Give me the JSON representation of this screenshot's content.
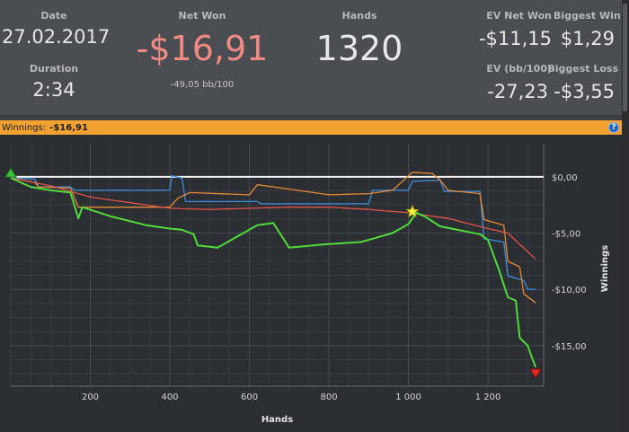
{
  "stats": {
    "date": {
      "label": "Date",
      "value": "27.02.2017"
    },
    "duration": {
      "label": "Duration",
      "value": "2:34"
    },
    "net_won": {
      "label": "Net Won",
      "value": "-$16,91",
      "sub": "-49,05 bb/100"
    },
    "hands": {
      "label": "Hands",
      "value": "1320"
    },
    "ev_net_won": {
      "label": "EV Net Won",
      "value": "-$11,15"
    },
    "ev_bb": {
      "label": "EV (bb/100)",
      "value": "-27,23"
    },
    "biggest_win": {
      "label": "Biggest Win",
      "value": "$1,29"
    },
    "biggest_loss": {
      "label": "Biggest Loss",
      "value": "-$3,55"
    }
  },
  "colors": {
    "net_won": "#f08a84",
    "accent_bar": "#f2a230",
    "green": "#4fdc3a",
    "red": "#e0544a",
    "blue": "#3c8fe0",
    "orange": "#e98b36"
  },
  "winnings_bar": {
    "label": "Winnings:",
    "value": "-$16,91",
    "help_icon": "?"
  },
  "chart_data": {
    "type": "line",
    "xlabel": "Hands",
    "ylabel": "Winnings",
    "xlim": [
      0,
      1340
    ],
    "ylim": [
      -18.6,
      2.3
    ],
    "x_ticks": [
      200,
      400,
      600,
      800,
      1000,
      1200
    ],
    "x_tick_labels": [
      "200",
      "400",
      "600",
      "800",
      "1 000",
      "1 200"
    ],
    "y_ticks": [
      0,
      -5,
      -10,
      -15
    ],
    "y_tick_labels": [
      "$0,00",
      "-$5,00",
      "-$10,00",
      "-$15,00"
    ],
    "grid": true,
    "zero_line": true,
    "series": [
      {
        "color": "blue",
        "points": [
          [
            0,
            -0.1
          ],
          [
            60,
            -0.2
          ],
          [
            70,
            -0.9
          ],
          [
            150,
            -0.9
          ],
          [
            160,
            -1.2
          ],
          [
            400,
            -1.2
          ],
          [
            405,
            0.1
          ],
          [
            430,
            -0.1
          ],
          [
            440,
            -2.2
          ],
          [
            620,
            -2.2
          ],
          [
            630,
            -2.4
          ],
          [
            900,
            -2.4
          ],
          [
            910,
            -1.2
          ],
          [
            1000,
            -1.2
          ],
          [
            1010,
            -0.4
          ],
          [
            1080,
            -0.3
          ],
          [
            1090,
            -1.3
          ],
          [
            1180,
            -1.3
          ],
          [
            1190,
            -5.5
          ],
          [
            1240,
            -5.8
          ],
          [
            1250,
            -8.8
          ],
          [
            1290,
            -9.2
          ],
          [
            1300,
            -10.0
          ],
          [
            1320,
            -10.0
          ]
        ]
      },
      {
        "color": "orange",
        "points": [
          [
            0,
            -0.1
          ],
          [
            60,
            -0.5
          ],
          [
            70,
            -0.9
          ],
          [
            150,
            -1.0
          ],
          [
            170,
            -2.7
          ],
          [
            400,
            -2.7
          ],
          [
            420,
            -1.9
          ],
          [
            450,
            -1.4
          ],
          [
            600,
            -1.6
          ],
          [
            620,
            -0.7
          ],
          [
            700,
            -1.1
          ],
          [
            800,
            -1.6
          ],
          [
            900,
            -1.5
          ],
          [
            960,
            -1.2
          ],
          [
            1010,
            0.4
          ],
          [
            1060,
            0.3
          ],
          [
            1080,
            -0.3
          ],
          [
            1100,
            -1.2
          ],
          [
            1180,
            -1.5
          ],
          [
            1190,
            -3.8
          ],
          [
            1240,
            -4.3
          ],
          [
            1250,
            -7.5
          ],
          [
            1280,
            -8.0
          ],
          [
            1290,
            -10.4
          ],
          [
            1320,
            -11.2
          ]
        ]
      },
      {
        "color": "red",
        "points": [
          [
            0,
            -0.1
          ],
          [
            100,
            -0.8
          ],
          [
            200,
            -1.8
          ],
          [
            300,
            -2.3
          ],
          [
            400,
            -2.8
          ],
          [
            500,
            -2.9
          ],
          [
            600,
            -2.8
          ],
          [
            700,
            -2.7
          ],
          [
            800,
            -2.7
          ],
          [
            900,
            -2.9
          ],
          [
            1000,
            -3.2
          ],
          [
            1100,
            -3.7
          ],
          [
            1200,
            -4.6
          ],
          [
            1250,
            -5.0
          ],
          [
            1280,
            -6.0
          ],
          [
            1320,
            -7.3
          ]
        ]
      },
      {
        "color": "green",
        "points": [
          [
            0,
            -0.1
          ],
          [
            50,
            -0.9
          ],
          [
            100,
            -1.2
          ],
          [
            150,
            -1.4
          ],
          [
            170,
            -3.7
          ],
          [
            180,
            -2.7
          ],
          [
            250,
            -3.5
          ],
          [
            340,
            -4.3
          ],
          [
            400,
            -4.6
          ],
          [
            430,
            -4.7
          ],
          [
            460,
            -5.1
          ],
          [
            470,
            -6.1
          ],
          [
            520,
            -6.3
          ],
          [
            560,
            -5.5
          ],
          [
            620,
            -4.3
          ],
          [
            660,
            -4.1
          ],
          [
            680,
            -5.2
          ],
          [
            700,
            -6.3
          ],
          [
            790,
            -6.0
          ],
          [
            880,
            -5.8
          ],
          [
            910,
            -5.5
          ],
          [
            960,
            -5.0
          ],
          [
            1000,
            -4.2
          ],
          [
            1020,
            -3.2
          ],
          [
            1040,
            -3.5
          ],
          [
            1080,
            -4.4
          ],
          [
            1180,
            -5.1
          ],
          [
            1200,
            -5.6
          ],
          [
            1230,
            -8.5
          ],
          [
            1240,
            -9.6
          ],
          [
            1250,
            -10.7
          ],
          [
            1270,
            -11.0
          ],
          [
            1280,
            -14.3
          ],
          [
            1300,
            -15.0
          ],
          [
            1310,
            -16.0
          ],
          [
            1320,
            -16.91
          ]
        ]
      }
    ],
    "markers": [
      {
        "type": "triangle-up",
        "color": "green",
        "x": 0,
        "y": 0.3
      },
      {
        "type": "star",
        "color": "yellow",
        "x": 1010,
        "y": -3.1
      },
      {
        "type": "triangle-down",
        "color": "red",
        "x": 1320,
        "y": -17.4
      }
    ]
  }
}
